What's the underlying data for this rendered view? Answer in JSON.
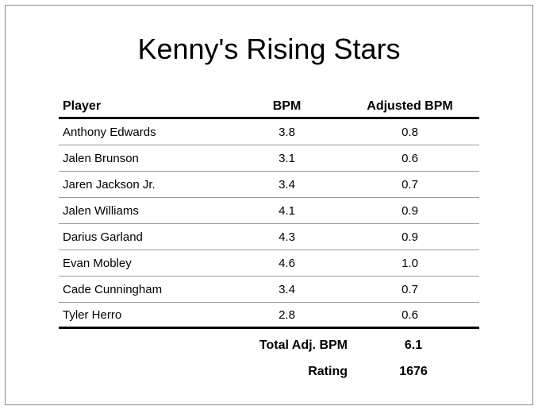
{
  "title": "Kenny's Rising Stars",
  "table": {
    "headers": [
      "Player",
      "BPM",
      "Adjusted BPM"
    ],
    "rows": [
      {
        "player": "Anthony Edwards",
        "bpm": "3.8",
        "adj": "0.8"
      },
      {
        "player": "Jalen Brunson",
        "bpm": "3.1",
        "adj": "0.6"
      },
      {
        "player": "Jaren Jackson Jr.",
        "bpm": "3.4",
        "adj": "0.7"
      },
      {
        "player": "Jalen Williams",
        "bpm": "4.1",
        "adj": "0.9"
      },
      {
        "player": "Darius Garland",
        "bpm": "4.3",
        "adj": "0.9"
      },
      {
        "player": "Evan Mobley",
        "bpm": "4.6",
        "adj": "1.0"
      },
      {
        "player": "Cade Cunningham",
        "bpm": "3.4",
        "adj": "0.7"
      },
      {
        "player": "Tyler Herro",
        "bpm": "2.8",
        "adj": "0.6"
      }
    ]
  },
  "summary": {
    "total_label": "Total Adj. BPM",
    "total_value": "6.1",
    "rating_label": "Rating",
    "rating_value": "1676"
  }
}
